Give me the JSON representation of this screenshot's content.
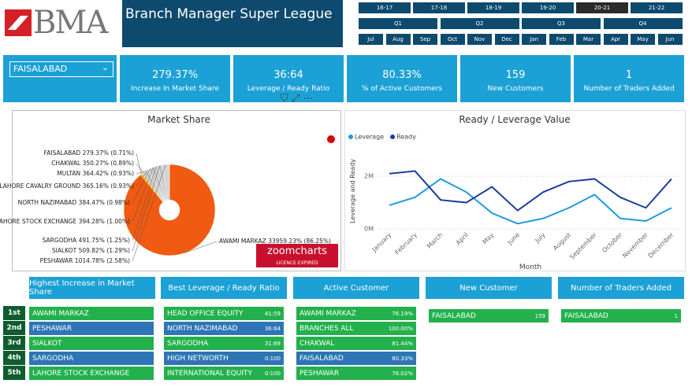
{
  "header": {
    "logo": "BMA",
    "title": "Branch Manager Super League"
  },
  "slicers": {
    "years": [
      "16-17",
      "17-18",
      "18-19",
      "19-20",
      "20-21",
      "21-22"
    ],
    "selected_year": "20-21",
    "quarters": [
      "Q1",
      "Q2",
      "Q3",
      "Q4"
    ],
    "months": [
      "Jul",
      "Aug",
      "Sep",
      "Oct",
      "Nov",
      "Dec",
      "Jan",
      "Feb",
      "Mar",
      "Apr",
      "May",
      "Jun"
    ],
    "branch": "FAISALABAD"
  },
  "kpis": [
    {
      "value": "279.37%",
      "label": "Increase In Market Share"
    },
    {
      "value": "36:64",
      "label": "Leverage / Ready Ratio"
    },
    {
      "value": "80.33%",
      "label": "% of Active Customers"
    },
    {
      "value": "159",
      "label": "New Customers"
    },
    {
      "value": "1",
      "label": "Number of Traders Added"
    }
  ],
  "chart_data": [
    {
      "type": "pie",
      "title": "Market Share",
      "categories": [
        "AWAMI MARKAZ",
        "FAISALABAD",
        "CHAKWAL",
        "MULTAN",
        "LAHORE CAVALRY GROUND",
        "NORTH NAZIMABAD",
        "LAHORE STOCK EXCHANGE",
        "SARGODHA",
        "SIALKOT",
        "PESHAWAR"
      ],
      "values": [
        86.25,
        0.71,
        0.89,
        0.93,
        0.93,
        0.98,
        1.0,
        1.25,
        1.29,
        2.58
      ],
      "value_labels": [
        "33959.23% (86.25%)",
        "279.37% (0.71%)",
        "350.27% (0.89%)",
        "364.42% (0.93%)",
        "365.16% (0.93%)",
        "384.47% (0.98%)",
        "394.28% (1.00%)",
        "491.75% (1.25%)",
        "509.82% (1.29%)",
        "1014.78% (2.58%)"
      ],
      "colors": [
        "#f05a12",
        "#f5c400",
        "#c8c8c8",
        "#bdbdbd",
        "#d0d0d0",
        "#c4c4c4",
        "#b8b8b8",
        "#cccccc",
        "#c0c0c0",
        "#d4d4d4"
      ],
      "badge": "zoomcharts",
      "badge_note": "LICENCE EXPIRED"
    },
    {
      "type": "line",
      "title": "Ready / Leverage Value",
      "x_label": "Month",
      "y_label": "Leverage and Ready",
      "categories": [
        "January",
        "February",
        "March",
        "April",
        "May",
        "June",
        "July",
        "August",
        "September",
        "October",
        "November",
        "December"
      ],
      "series": [
        {
          "name": "Leverage",
          "color": "#1f9be0",
          "values": [
            0.9,
            1.2,
            1.9,
            1.4,
            0.6,
            0.2,
            0.4,
            0.8,
            1.3,
            0.4,
            0.3,
            0.8
          ]
        },
        {
          "name": "Ready",
          "color": "#1a3e9c",
          "values": [
            2.1,
            2.2,
            1.1,
            1.0,
            1.6,
            0.7,
            1.4,
            1.8,
            1.9,
            1.2,
            0.8,
            1.9
          ]
        }
      ],
      "ylim": [
        0,
        2.9
      ],
      "yticks": [
        {
          "value": 0,
          "label": "0M"
        },
        {
          "value": 2,
          "label": "2M"
        }
      ],
      "grid": true,
      "legend": "top-left"
    }
  ],
  "tables": [
    {
      "title": "Highest Increase in Market Share",
      "ranks": [
        "1st",
        "2nd",
        "3rd",
        "4th",
        "5th"
      ],
      "rows": [
        [
          "AWAMI MARKAZ"
        ],
        [
          "PESHAWAR"
        ],
        [
          "SIALKOT"
        ],
        [
          "SARGODHA"
        ],
        [
          "LAHORE STOCK EXCHANGE"
        ]
      ]
    },
    {
      "title": "Best Leverage / Ready Ratio",
      "rows": [
        [
          "HEAD OFFICE EQUITY",
          "41:59"
        ],
        [
          "NORTH NAZIMABAD",
          "36:64"
        ],
        [
          "SARGODHA",
          "31:69"
        ],
        [
          "HIGH NETWORTH",
          "0:100"
        ],
        [
          "INTERNATIONAL EQUITY",
          "0:100"
        ]
      ]
    },
    {
      "title": "Active Customer",
      "rows": [
        [
          "AWAMI MARKAZ",
          "76.19%"
        ],
        [
          "BRANCHES ALL",
          "100.00%"
        ],
        [
          "CHAKWAL",
          "81.44%"
        ],
        [
          "FAISALABAD",
          "80.33%"
        ],
        [
          "PESHAWAR",
          "76.02%"
        ]
      ]
    },
    {
      "title": "New Customer",
      "rows": [
        [
          "FAISALABAD",
          "159"
        ]
      ]
    },
    {
      "title": "Number of Traders Added",
      "rows": [
        [
          "FAISALABAD",
          "1"
        ]
      ]
    }
  ]
}
